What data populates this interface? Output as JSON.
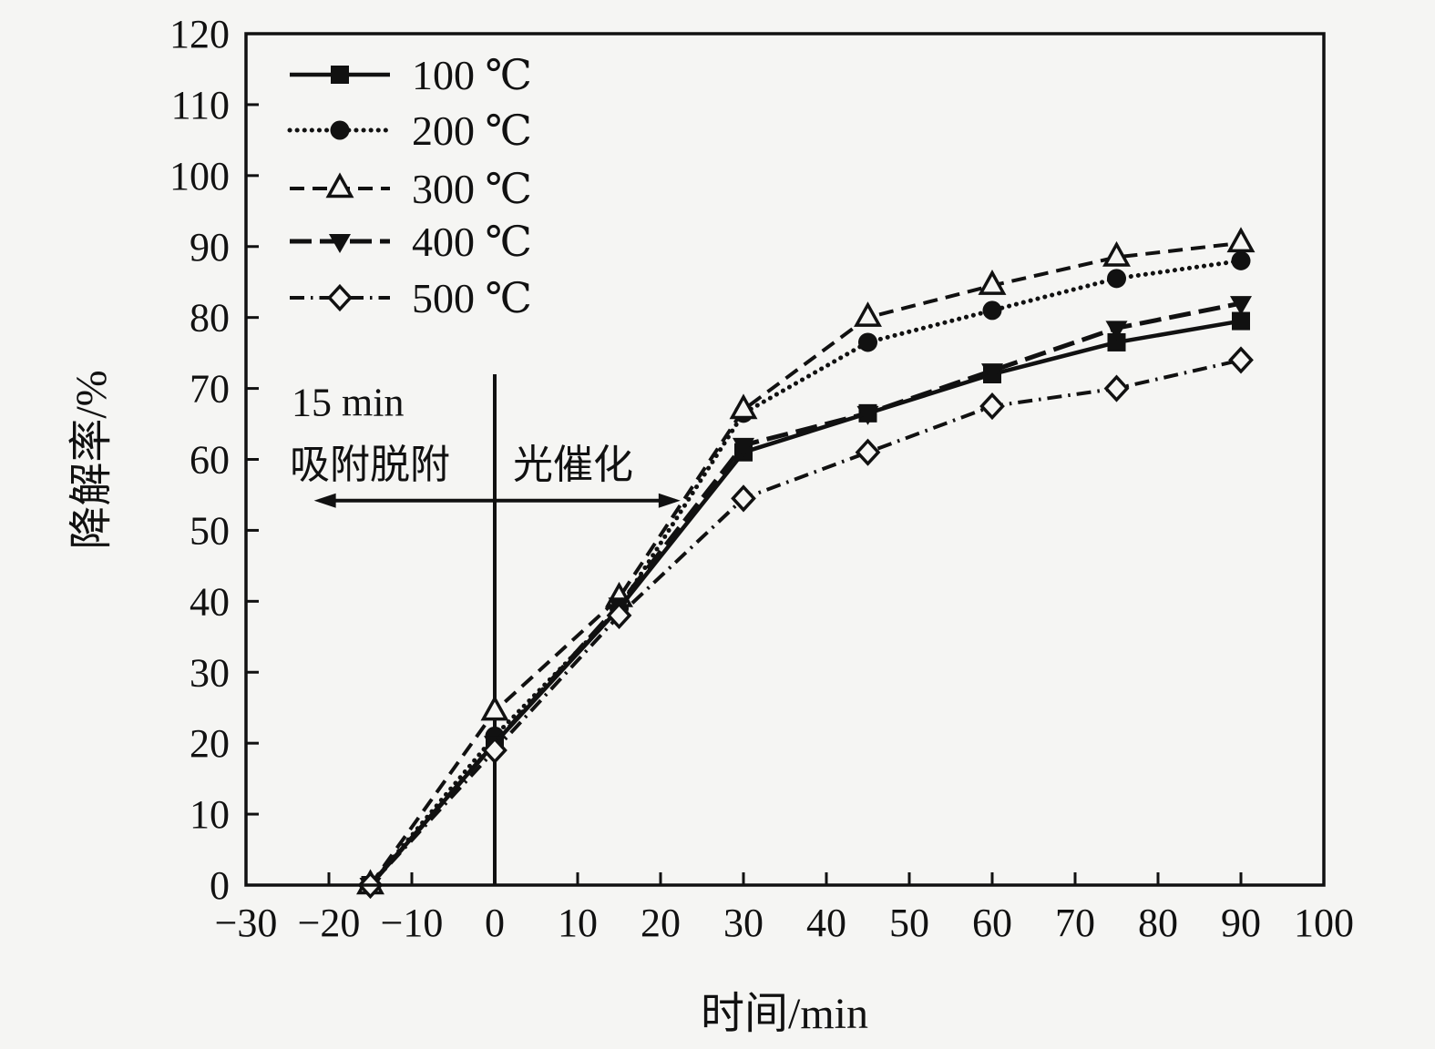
{
  "figure_background": "#f5f5f3",
  "ink_color": "#111111",
  "chart_data": {
    "type": "line",
    "title": "",
    "xlabel": "时间/min",
    "ylabel": "降解率/%",
    "xlim": [
      -30,
      100
    ],
    "ylim": [
      0,
      120
    ],
    "x_tick_labels": [
      "−30",
      "−20",
      "−10",
      "0",
      "10",
      "20",
      "30",
      "40",
      "50",
      "60",
      "70",
      "80",
      "90",
      "100"
    ],
    "x_tick_values": [
      -30,
      -20,
      -10,
      0,
      10,
      20,
      30,
      40,
      50,
      60,
      70,
      80,
      90,
      100
    ],
    "y_tick_labels": [
      "0",
      "10",
      "20",
      "30",
      "40",
      "50",
      "60",
      "70",
      "80",
      "90",
      "100",
      "110",
      "120"
    ],
    "y_tick_values": [
      0,
      10,
      20,
      30,
      40,
      50,
      60,
      70,
      80,
      90,
      100,
      110,
      120
    ],
    "grid": false,
    "legend_position": "upper-left-inside",
    "x": [
      -15,
      0,
      15,
      30,
      45,
      60,
      75,
      90
    ],
    "series": [
      {
        "name": "100 ℃",
        "marker": "square-filled",
        "line": "solid",
        "values": [
          0,
          20,
          39,
          61,
          66.5,
          72,
          76.5,
          79.5
        ]
      },
      {
        "name": "200 ℃",
        "marker": "circle-filled",
        "line": "dotted",
        "values": [
          0,
          21,
          39,
          66.5,
          76.5,
          81,
          85.5,
          88
        ]
      },
      {
        "name": "300 ℃",
        "marker": "triangle-up-open",
        "line": "dashed",
        "values": [
          0,
          24.5,
          40.5,
          67,
          80,
          84.5,
          88.5,
          90.5
        ]
      },
      {
        "name": "400 ℃",
        "marker": "triangle-down-filled",
        "line": "long-dash",
        "values": [
          0,
          20,
          39.5,
          62,
          66.5,
          72.5,
          78.5,
          82
        ]
      },
      {
        "name": "500 ℃",
        "marker": "diamond-open",
        "line": "dash-dot",
        "values": [
          0,
          19,
          38,
          54.5,
          61,
          67.5,
          70,
          74
        ]
      }
    ],
    "annotations": {
      "line1": "15 min",
      "line2_left": "吸附脱附",
      "line2_right": "光催化",
      "vline_x": 0,
      "vline_y_top": 72,
      "arrow_x_span": [
        -21.8,
        22.4
      ],
      "arrow_y": 54.2
    }
  }
}
